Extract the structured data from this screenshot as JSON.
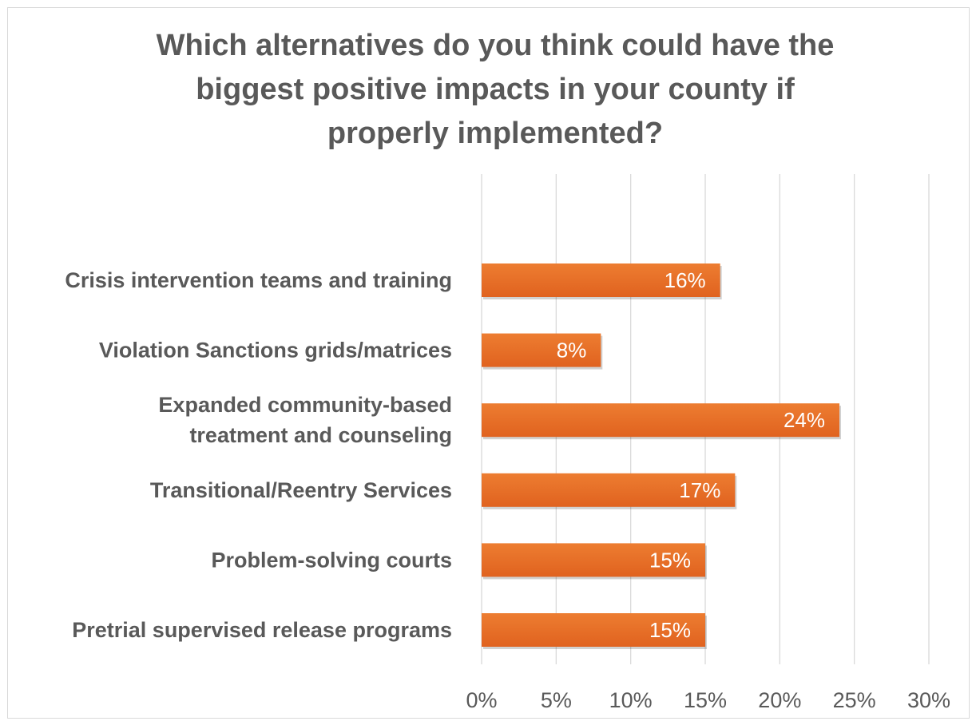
{
  "chart_data": {
    "type": "bar",
    "orientation": "horizontal",
    "title_lines": [
      "Which alternatives do you think could have the",
      "biggest positive impacts in your county if",
      "properly implemented?"
    ],
    "categories": [
      [
        "Crisis intervention teams and training"
      ],
      [
        "Violation Sanctions grids/matrices"
      ],
      [
        "Expanded community-based",
        "treatment and counseling"
      ],
      [
        "Transitional/Reentry  Services"
      ],
      [
        "Problem-solving courts"
      ],
      [
        "Pretrial supervised release programs"
      ]
    ],
    "values": [
      16,
      8,
      24,
      17,
      15,
      15
    ],
    "data_labels": [
      "16%",
      "8%",
      "24%",
      "17%",
      "15%",
      "15%"
    ],
    "x_ticks": [
      0,
      5,
      10,
      15,
      20,
      25,
      30
    ],
    "x_tick_labels": [
      "0%",
      "5%",
      "10%",
      "15%",
      "20%",
      "25%",
      "30%"
    ],
    "xlim": [
      0,
      30
    ],
    "xlabel": "",
    "ylabel": "",
    "grid": "vertical",
    "legend": "none",
    "bar_color": "#ed7d31",
    "bar_color_dark": "#e0621f",
    "gridline_color": "#d9d9d9",
    "text_color": "#595959"
  }
}
